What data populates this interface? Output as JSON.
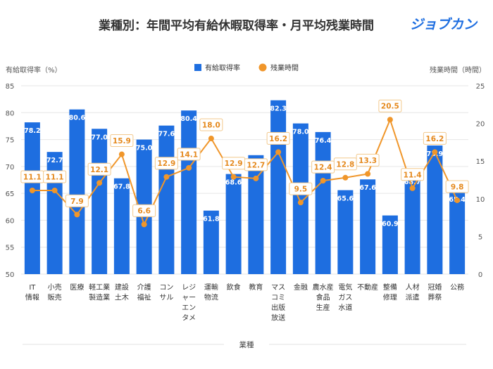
{
  "title": "業種別：年間平均有給休暇取得率・月平均残業時間",
  "brand": "ジョブカン",
  "chart_data": {
    "type": "bar",
    "title": "業種別：年間平均有給休暇取得率・月平均残業時間",
    "xlabel": "業種",
    "ylabel_left": "有給取得率（%）",
    "ylabel_right": "残業時間（時間）",
    "ylim_left": [
      50,
      85
    ],
    "ylim_right": [
      0,
      25
    ],
    "yticks_left": [
      "85",
      "80",
      "75",
      "70",
      "65",
      "60",
      "55",
      "50"
    ],
    "yticks_right": [
      "25",
      "20",
      "15",
      "10",
      "5",
      "0"
    ],
    "grid": true,
    "legend_position": "top-center",
    "categories": [
      [
        "IT",
        "情報"
      ],
      [
        "小売",
        "販売"
      ],
      [
        "医療"
      ],
      [
        "軽工業",
        "製造業"
      ],
      [
        "建設",
        "土木"
      ],
      [
        "介護",
        "福祉"
      ],
      [
        "コン",
        "サル"
      ],
      [
        "レジ",
        "ャー",
        "エン",
        "タメ"
      ],
      [
        "運輸",
        "物流"
      ],
      [
        "飲食"
      ],
      [
        "教育"
      ],
      [
        "マス",
        "コミ",
        "出版",
        "放送"
      ],
      [
        "金融"
      ],
      [
        "農水産",
        "食品",
        "生産"
      ],
      [
        "電気",
        "ガス",
        "水道"
      ],
      [
        "不動産"
      ],
      [
        "整備",
        "修理"
      ],
      [
        "人材",
        "派遣"
      ],
      [
        "冠婚",
        "葬祭"
      ],
      [
        "公務"
      ]
    ],
    "series": [
      {
        "name": "有給取得率",
        "axis": "left",
        "type": "bar",
        "color": "#1e6ee0",
        "values": [
          78.2,
          72.7,
          80.6,
          77.0,
          67.8,
          75.0,
          77.6,
          80.4,
          61.8,
          68.6,
          72.1,
          82.3,
          78.0,
          76.4,
          65.6,
          67.6,
          60.9,
          68.7,
          73.9,
          65.4
        ]
      },
      {
        "name": "残業時間",
        "axis": "right",
        "type": "line",
        "color": "#f0962a",
        "values": [
          11.1,
          11.1,
          7.9,
          12.1,
          15.9,
          6.6,
          12.9,
          14.1,
          18.0,
          12.9,
          12.7,
          16.2,
          9.5,
          12.4,
          12.8,
          13.3,
          20.5,
          11.4,
          16.2,
          9.8
        ]
      }
    ]
  }
}
